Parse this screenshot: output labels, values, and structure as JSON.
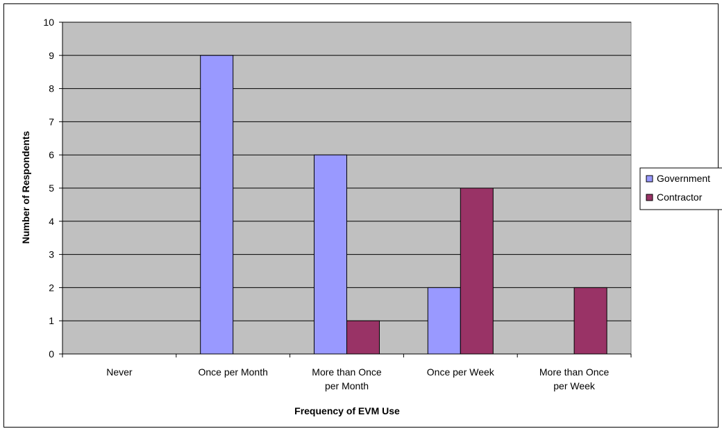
{
  "chart_data": {
    "type": "bar",
    "title": "",
    "xlabel": "Frequency of EVM Use",
    "ylabel": "Number of Respondents",
    "ylim": [
      0,
      10
    ],
    "yticks": [
      0,
      1,
      2,
      3,
      4,
      5,
      6,
      7,
      8,
      9,
      10
    ],
    "grid": true,
    "legend_position": "right",
    "categories": [
      [
        "Never"
      ],
      [
        "Once per Month"
      ],
      [
        "More than Once",
        "per Month"
      ],
      [
        "Once per Week"
      ],
      [
        "More than Once",
        "per Week"
      ]
    ],
    "series": [
      {
        "name": "Government",
        "color": "#9999ff",
        "values": [
          0,
          9,
          6,
          2,
          0
        ]
      },
      {
        "name": "Contractor",
        "color": "#993366",
        "values": [
          0,
          0,
          1,
          5,
          2
        ]
      }
    ],
    "colors": {
      "plot_background": "#c0c0c0",
      "gridline": "#000000"
    }
  }
}
